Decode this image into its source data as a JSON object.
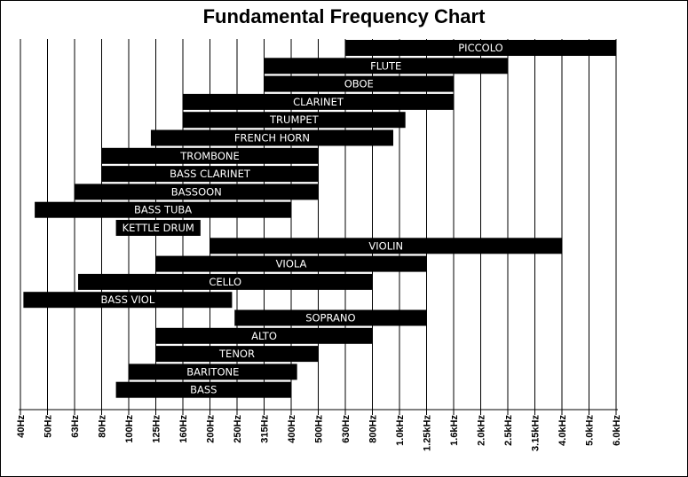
{
  "title": "Fundamental Frequency Chart",
  "chart_data": {
    "type": "bar",
    "orientation": "horizontal",
    "title": "Fundamental Frequency Chart",
    "xscale": "log",
    "grid": true,
    "ticks": [
      "40Hz",
      "50Hz",
      "63Hz",
      "80Hz",
      "100Hz",
      "125Hz",
      "160Hz",
      "200Hz",
      "250Hz",
      "315Hz",
      "400Hz",
      "500Hz",
      "630Hz",
      "800Hz",
      "1.0kHz",
      "1.25kHz",
      "1.6kHz",
      "2.0kHz",
      "2.5kHz",
      "3.15kHz",
      "4.0kHz",
      "5.0kHz",
      "6.0kHz"
    ],
    "instruments": [
      {
        "name": "PICCOLO",
        "low": 630,
        "high": 6000
      },
      {
        "name": "FLUTE",
        "low": 315,
        "high": 2500
      },
      {
        "name": "OBOE",
        "low": 315,
        "high": 1600
      },
      {
        "name": "CLARINET",
        "low": 160,
        "high": 1600
      },
      {
        "name": "TRUMPET",
        "low": 160,
        "high": 1050
      },
      {
        "name": "FRENCH HORN",
        "low": 120,
        "high": 950
      },
      {
        "name": "TROMBONE",
        "low": 80,
        "high": 500
      },
      {
        "name": "BASS CLARINET",
        "low": 80,
        "high": 500
      },
      {
        "name": "BASSOON",
        "low": 63,
        "high": 500
      },
      {
        "name": "BASS TUBA",
        "low": 45,
        "high": 400
      },
      {
        "name": "KETTLE DRUM",
        "low": 90,
        "high": 185
      },
      {
        "name": "VIOLIN",
        "low": 200,
        "high": 4000
      },
      {
        "name": "VIOLA",
        "low": 125,
        "high": 1250
      },
      {
        "name": "CELLO",
        "low": 65,
        "high": 800
      },
      {
        "name": "BASS VIOL",
        "low": 41,
        "high": 240
      },
      {
        "name": "SOPRANO",
        "low": 245,
        "high": 1250
      },
      {
        "name": "ALTO",
        "low": 125,
        "high": 800
      },
      {
        "name": "TENOR",
        "low": 125,
        "high": 500
      },
      {
        "name": "BARITONE",
        "low": 100,
        "high": 420
      },
      {
        "name": "BASS",
        "low": 90,
        "high": 400
      }
    ]
  }
}
